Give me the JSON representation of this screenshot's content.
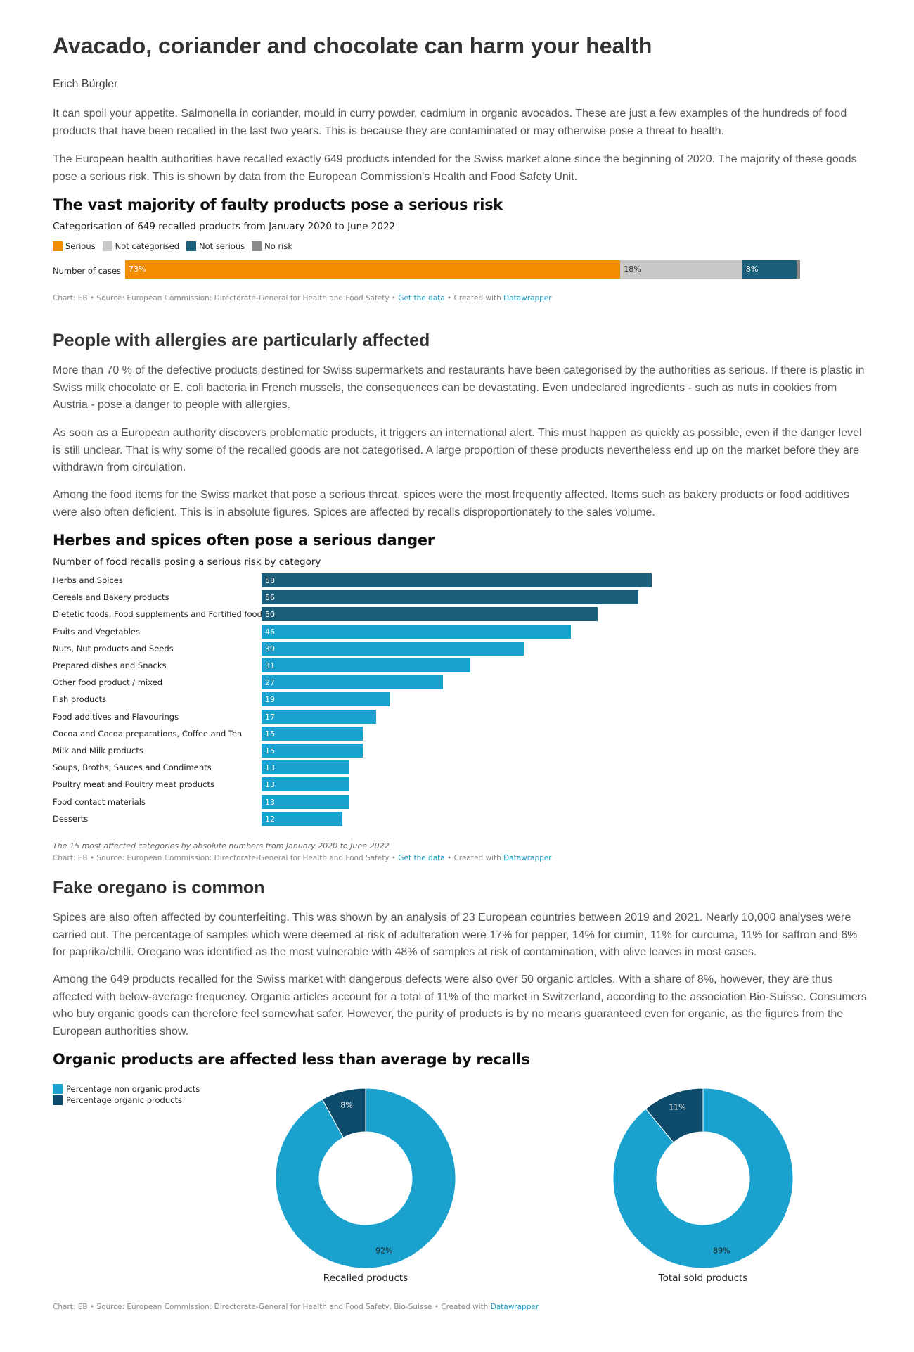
{
  "article": {
    "title": "Avacado, coriander and chocolate can harm your health",
    "author": "Erich Bürgler",
    "intro_p1": "It can spoil your appetite. Salmonella in coriander, mould in curry powder, cadmium in organic avocados. These are just a few examples of the hundreds of food products that have been recalled in the last two years. This is because they are contaminated or may otherwise pose a threat to health.",
    "intro_p2": "The European health authorities have recalled exactly 649 products intended for the Swiss market alone since the beginning of 2020. The majority of these goods pose a serious risk. This is shown by data from the European Commission's Health and Food Safety Unit.",
    "section2_heading": "People with allergies are particularly affected",
    "section2_p1": "More than 70 % of the defective products destined for Swiss supermarkets and restaurants have been categorised by the authorities as serious. If there is plastic in Swiss milk chocolate or E. coli bacteria in French mussels, the consequences can be devastating. Even undeclared ingredients - such as nuts in cookies from Austria - pose a danger to people with allergies.",
    "section2_p2": "As soon as a European authority discovers problematic products, it triggers an international alert. This must happen as quickly as possible, even if the danger level is still unclear. That is why some of the recalled goods are not categorised. A large proportion of these products nevertheless end up on the market before they are withdrawn from circulation.",
    "section2_p3": "Among the food items for the Swiss market that pose a serious threat, spices were the most frequently affected. Items such as bakery products or food additives were also often deficient. This is in absolute figures. Spices are affected by recalls disproportionately to the sales volume.",
    "section3_heading": "Fake oregano is common",
    "section3_p1": "Spices are also often affected by counterfeiting. This was shown by an analysis of 23 European countries between 2019 and 2021. Nearly 10,000 analyses were carried out. The percentage of samples which were deemed at risk of adulteration were 17% for pepper, 14% for cumin, 11% for curcuma, 11% for saffron and 6% for paprika/chilli. Oregano was identified as the most vulnerable with 48% of samples at risk of contamination, with olive leaves in most cases.",
    "section3_p2": "Among the 649 products recalled for the Swiss market with dangerous defects were also over 50 organic articles. With a share of 8%, however, they are thus affected with below-average frequency. Organic articles account for a total of 11% of the market in Switzerland, according to the association Bio-Suisse. Consumers who buy organic goods can therefore feel somewhat safer. However, the purity of products is by no means guaranteed even for organic, as the figures from the European authorities show."
  },
  "chart1_text": {
    "footer_prefix": "Chart: EB • Source: European Commission: Directorate-General for Health and Food Safety • ",
    "get_data": "Get the data",
    "footer_mid": " • Created with ",
    "datawrapper": "Datawrapper"
  },
  "chart2_text": {
    "note": "The 15 most affected categories by absolute numbers from January 2020 to June 2022",
    "footer_prefix": "Chart: EB • Source: European Commission: Directorate-General for Health and Food Safety • ",
    "get_data": "Get the data",
    "footer_mid": " • Created with ",
    "datawrapper": "Datawrapper"
  },
  "chart3_text": {
    "footer_prefix": "Chart: EB • Source: European Commission: Directorate-General for Health and Food Safety, Bio-Suisse • Created with ",
    "datawrapper": "Datawrapper"
  },
  "colors": {
    "serious": "#f28c00",
    "not_categorised": "#c8c8c8",
    "not_serious": "#1b5f7a",
    "no_risk": "#8a8a8a",
    "bar_dark": "#1b5f7a",
    "bar_light": "#1aa1cd",
    "donut_light": "#1aa1cd",
    "donut_dark": "#0e4b6b",
    "link": "#1f9bc6"
  },
  "chart_data": [
    {
      "type": "bar",
      "orientation": "horizontal-stacked",
      "title": "The vast majority of faulty products pose a serious risk",
      "subtitle": "Categorisation of 649 recalled products from January 2020 to June 2022",
      "categories": [
        "Number of cases"
      ],
      "series": [
        {
          "name": "Serious",
          "values": [
            73
          ],
          "label": "73%"
        },
        {
          "name": "Not categorised",
          "values": [
            18
          ],
          "label": "18%"
        },
        {
          "name": "Not serious",
          "values": [
            8
          ],
          "label": "8%"
        },
        {
          "name": "No risk",
          "values": [
            0.4
          ],
          "label": ""
        }
      ],
      "legend": "top-left",
      "grid": false
    },
    {
      "type": "bar",
      "orientation": "horizontal",
      "title": "Herbes and spices often pose a serious danger",
      "subtitle": "Number of food recalls posing a serious risk by category",
      "categories": [
        "Herbs and Spices",
        "Cereals and Bakery products",
        "Dietetic foods, Food supplements and Fortified foods",
        "Fruits and Vegetables",
        "Nuts, Nut products and Seeds",
        "Prepared dishes and Snacks",
        "Other food product / mixed",
        "Fish products",
        "Food additives and Flavourings",
        "Cocoa and Cocoa preparations, Coffee and Tea",
        "Milk and Milk products",
        "Soups, Broths, Sauces and Condiments",
        "Poultry meat and Poultry meat products",
        "Food contact materials",
        "Desserts"
      ],
      "values": [
        58,
        56,
        50,
        46,
        39,
        31,
        27,
        19,
        17,
        15,
        15,
        13,
        13,
        13,
        12
      ],
      "highlight_top": 3,
      "xlim": [
        0,
        58
      ],
      "grid": false
    },
    {
      "type": "pie",
      "variant": "donut",
      "title": "Organic products are affected less than average by recalls",
      "legend": "top-left",
      "legend_entries": [
        "Percentage non organic products",
        "Percentage organic products"
      ],
      "charts": [
        {
          "label": "Recalled products",
          "values": [
            92,
            8
          ],
          "value_labels": [
            "92%",
            "8%"
          ]
        },
        {
          "label": "Total sold products",
          "values": [
            89,
            11
          ],
          "value_labels": [
            "89%",
            "11%"
          ]
        }
      ]
    }
  ]
}
